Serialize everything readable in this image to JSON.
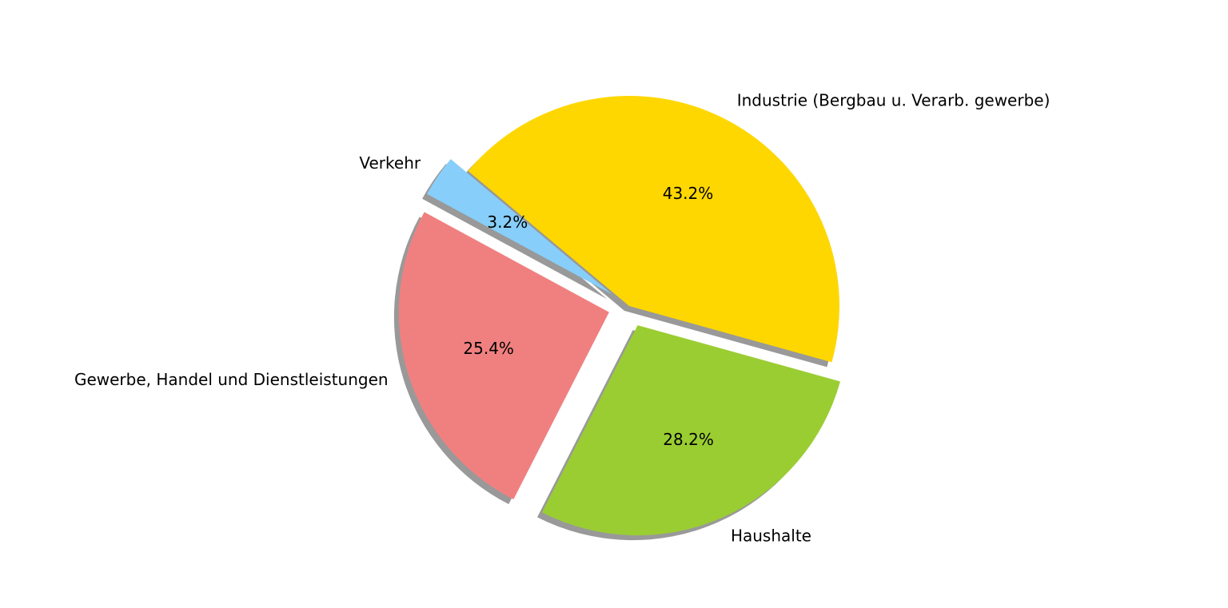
{
  "chart_data": {
    "type": "pie",
    "title": "",
    "slices": [
      {
        "label": "Verkehr",
        "value": 3.2,
        "pct_label": "3.2%",
        "color": "#87CEFA"
      },
      {
        "label": "Gewerbe, Handel und Dienstleistungen",
        "value": 25.4,
        "pct_label": "25.4%",
        "color": "#F08080"
      },
      {
        "label": "Haushalte",
        "value": 28.2,
        "pct_label": "28.2%",
        "color": "#9ACD32"
      },
      {
        "label": "Industrie (Bergbau u. Verarb. gewerbe)",
        "value": 43.2,
        "pct_label": "43.2%",
        "color": "#FFD700"
      }
    ],
    "exploded": [
      "Verkehr",
      "Gewerbe, Handel und Dienstleistungen",
      "Haushalte"
    ],
    "shadow": true,
    "legend": "none"
  }
}
